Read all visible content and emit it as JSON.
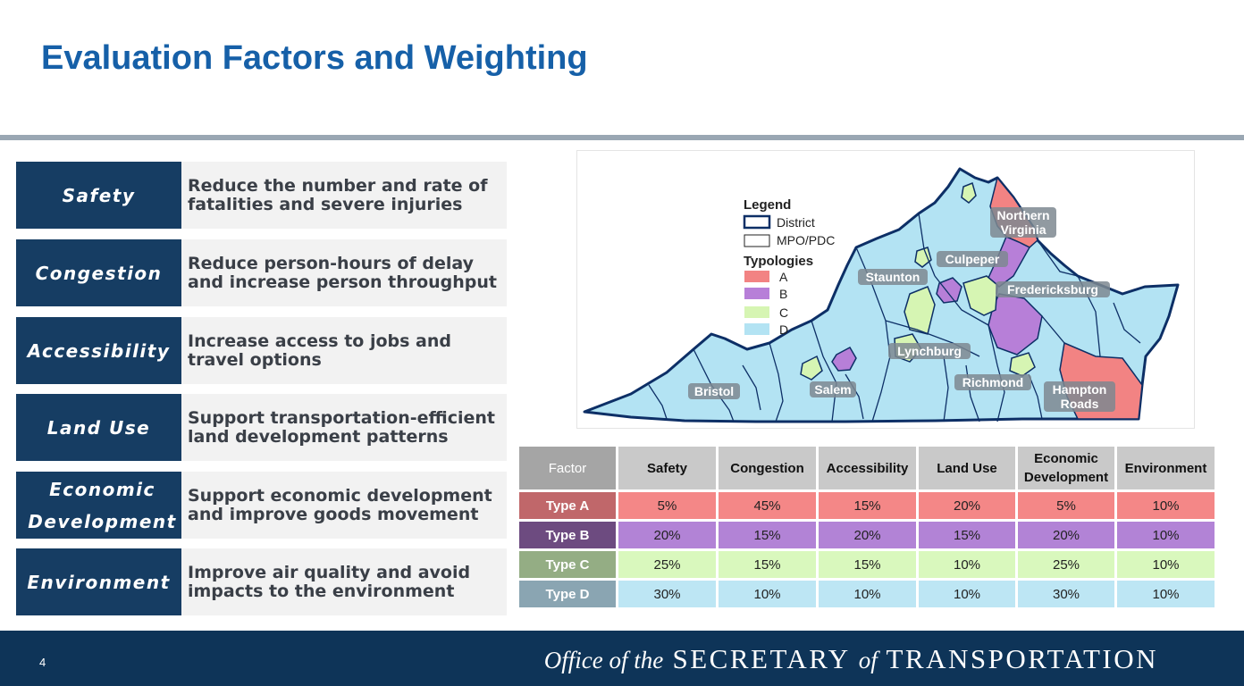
{
  "title": "Evaluation Factors and Weighting",
  "factors": [
    {
      "name": "Safety",
      "description": "Reduce the number and rate of fatalities and severe injuries"
    },
    {
      "name": "Congestion",
      "description": "Reduce person-hours of delay and increase person throughput"
    },
    {
      "name": "Accessibility",
      "description": "Increase access to jobs and travel options"
    },
    {
      "name": "Land Use",
      "description": "Support transportation-efficient land development patterns"
    },
    {
      "name": "Economic Development",
      "description": "Support economic development and improve goods movement"
    },
    {
      "name": "Environment",
      "description": "Improve air quality and avoid impacts to the environment"
    }
  ],
  "map": {
    "legend_title": "Legend",
    "legend_district": "District",
    "legend_mpo": "MPO/PDC",
    "typologies_title": "Typologies",
    "typology_labels": [
      "A",
      "B",
      "C",
      "D"
    ],
    "typology_colors": [
      "#f28383",
      "#b77fd8",
      "#d6f5b3",
      "#b3e3f3"
    ],
    "regions": [
      "Northern Virginia",
      "Culpeper",
      "Staunton",
      "Fredericksburg",
      "Lynchburg",
      "Richmond",
      "Hampton Roads",
      "Salem",
      "Bristol"
    ]
  },
  "weights_table": {
    "headers": [
      "Factor",
      "Safety",
      "Congestion",
      "Accessibility",
      "Land Use",
      "Economic Development",
      "Environment"
    ],
    "rows": [
      {
        "label": "Type A",
        "label_color": "#c0676a",
        "cell_color": "#f48787",
        "values": [
          "5%",
          "45%",
          "15%",
          "20%",
          "5%",
          "10%"
        ]
      },
      {
        "label": "Type B",
        "label_color": "#6d4b80",
        "cell_color": "#b283d6",
        "values": [
          "20%",
          "15%",
          "20%",
          "15%",
          "20%",
          "10%"
        ]
      },
      {
        "label": "Type C",
        "label_color": "#94ad84",
        "cell_color": "#d9f8bd",
        "values": [
          "25%",
          "15%",
          "15%",
          "10%",
          "25%",
          "10%"
        ]
      },
      {
        "label": "Type D",
        "label_color": "#8aa5b2",
        "cell_color": "#bde6f4",
        "values": [
          "30%",
          "10%",
          "10%",
          "10%",
          "30%",
          "10%"
        ]
      }
    ]
  },
  "footer": {
    "page_number": "4",
    "brand_office": "Office of the",
    "brand_secretary": "SECRETARY",
    "brand_of": "of",
    "brand_transportation": "TRANSPORTATION"
  }
}
